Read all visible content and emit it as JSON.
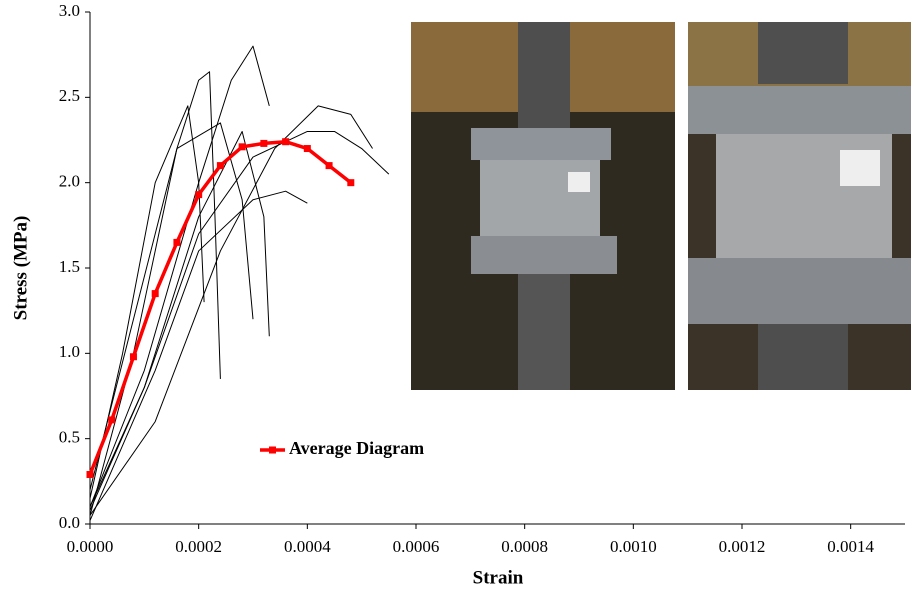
{
  "chart_data": {
    "type": "line",
    "xlabel": "Strain",
    "ylabel": "Stress (MPa)",
    "xlim": [
      0,
      0.0015
    ],
    "ylim": [
      0,
      3
    ],
    "xticks": [
      {
        "value": 0,
        "label": "0.0000"
      },
      {
        "value": 0.0002,
        "label": "0.0002"
      },
      {
        "value": 0.0004,
        "label": "0.0004"
      },
      {
        "value": 0.0006,
        "label": "0.0006"
      },
      {
        "value": 0.0008,
        "label": "0.0008"
      },
      {
        "value": 0.001,
        "label": "0.0010"
      },
      {
        "value": 0.0012,
        "label": "0.0012"
      },
      {
        "value": 0.0014,
        "label": "0.0014"
      }
    ],
    "yticks": [
      {
        "value": 0,
        "label": "0.0"
      },
      {
        "value": 0.5,
        "label": "0.5"
      },
      {
        "value": 1,
        "label": "1.0"
      },
      {
        "value": 1.5,
        "label": "1.5"
      },
      {
        "value": 2,
        "label": "2.0"
      },
      {
        "value": 2.5,
        "label": "2.5"
      },
      {
        "value": 3,
        "label": "3.0"
      }
    ],
    "grid": false,
    "series": [
      {
        "color": "#000000",
        "x": [
          0,
          0.0001,
          0.0002,
          0.00026,
          0.0003,
          0.00033
        ],
        "values": [
          0.1,
          0.9,
          2.0,
          2.6,
          2.8,
          2.45
        ]
      },
      {
        "color": "#000000",
        "x": [
          0,
          8e-05,
          0.00016,
          0.0002,
          0.00022,
          0.00023,
          0.00024
        ],
        "values": [
          0.05,
          1.0,
          2.2,
          2.6,
          2.65,
          1.8,
          0.85
        ]
      },
      {
        "color": "#000000",
        "x": [
          0,
          0.0001,
          0.0002,
          0.0003,
          0.0004,
          0.00045,
          0.0005,
          0.00055
        ],
        "values": [
          0.1,
          0.8,
          1.7,
          2.15,
          2.3,
          2.3,
          2.2,
          2.05
        ]
      },
      {
        "color": "#000000",
        "x": [
          0,
          0.00012,
          0.00024,
          0.00034,
          0.00042,
          0.00048,
          0.00052
        ],
        "values": [
          0.05,
          0.6,
          1.6,
          2.2,
          2.45,
          2.4,
          2.2
        ]
      },
      {
        "color": "#000000",
        "x": [
          0,
          8e-05,
          0.00016,
          0.00024,
          0.00028,
          0.0003
        ],
        "values": [
          0.2,
          1.2,
          2.2,
          2.35,
          1.9,
          1.2
        ]
      },
      {
        "color": "#000000",
        "x": [
          0,
          6e-05,
          0.00012,
          0.00018,
          0.0002,
          0.00021
        ],
        "values": [
          0.15,
          1.0,
          2.0,
          2.45,
          2.0,
          1.3
        ]
      },
      {
        "color": "#000000",
        "x": [
          0,
          0.0001,
          0.0002,
          0.00028,
          0.00032,
          0.00033
        ],
        "values": [
          0.08,
          0.8,
          1.8,
          2.3,
          1.8,
          1.1
        ]
      },
      {
        "color": "#000000",
        "x": [
          0,
          0.00012,
          0.0002,
          0.0003,
          0.00036,
          0.0004
        ],
        "values": [
          0.02,
          0.9,
          1.6,
          1.9,
          1.95,
          1.88
        ]
      },
      {
        "name": "Average Diagram",
        "color": "#ff0000",
        "markers": true,
        "x": [
          0,
          4e-05,
          8e-05,
          0.00012,
          0.00016,
          0.0002,
          0.00024,
          0.00028,
          0.00032,
          0.00036,
          0.0004,
          0.00044,
          0.00048
        ],
        "values": [
          0.29,
          0.61,
          0.98,
          1.35,
          1.65,
          1.93,
          2.1,
          2.21,
          2.23,
          2.24,
          2.2,
          2.1,
          2.0
        ]
      }
    ]
  }
}
